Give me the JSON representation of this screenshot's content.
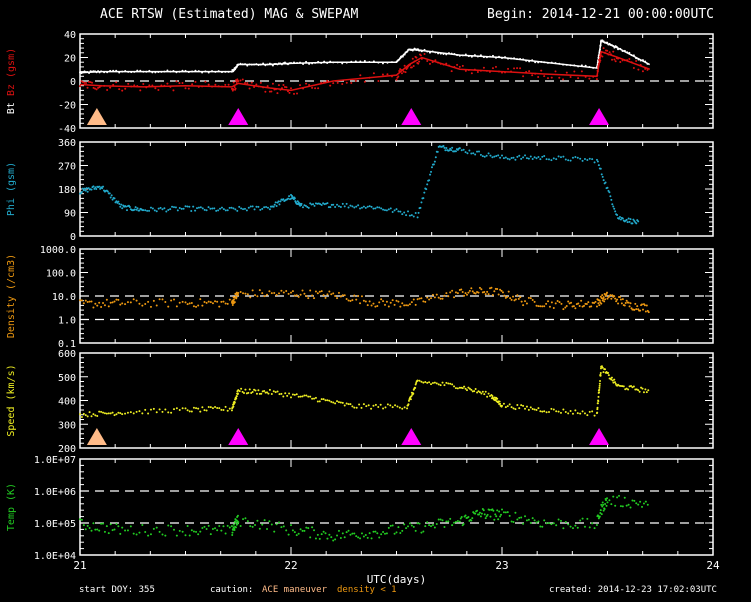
{
  "header": {
    "title": "ACE RTSW (Estimated) MAG & SWEPAM",
    "begin": "Begin: 2014-12-21 00:00:00UTC"
  },
  "footer": {
    "start_doy": "start DOY: 355",
    "caution_label": "caution:",
    "caution_maneuver": "ACE maneuver",
    "caution_density": "density < 1",
    "created": "created: 2014-12-23 17:02:03UTC"
  },
  "colors": {
    "background": "#000000",
    "frame": "#ffffff",
    "bt": "#ffffff",
    "bz": "#dd1111",
    "phi": "#22aacc",
    "density": "#ee9911",
    "speed": "#eeee22",
    "temp": "#22cc22",
    "maneuver_marker": "#ffbb88",
    "event_marker": "#ff00ff"
  },
  "chart_data": [
    {
      "type": "line",
      "panel": "mag",
      "ylabel_parts": [
        "Bt",
        "Bz",
        "(gsm)"
      ],
      "xlim": [
        21,
        24
      ],
      "ylim": [
        -40,
        40
      ],
      "yticks": [
        40,
        20,
        0,
        -20,
        -40
      ],
      "dashed_ref": [
        0
      ],
      "series": [
        {
          "name": "Bt",
          "x": [
            21.0,
            21.1,
            21.3,
            21.5,
            21.72,
            21.75,
            21.9,
            22.0,
            22.2,
            22.5,
            22.56,
            22.62,
            22.8,
            23.0,
            23.2,
            23.45,
            23.47,
            23.55,
            23.7
          ],
          "y": [
            7,
            8,
            8,
            8,
            8,
            14,
            14,
            15,
            16,
            16,
            27,
            26,
            22,
            20,
            16,
            11,
            34,
            28,
            14
          ]
        },
        {
          "name": "Bz",
          "x": [
            21.0,
            21.1,
            21.3,
            21.5,
            21.72,
            21.75,
            21.9,
            22.0,
            22.2,
            22.5,
            22.56,
            22.62,
            22.8,
            23.0,
            23.2,
            23.45,
            23.47,
            23.55,
            23.7
          ],
          "y": [
            -3,
            -4,
            -5,
            -4,
            -5,
            -2,
            -6,
            -8,
            0,
            5,
            14,
            20,
            10,
            8,
            6,
            4,
            25,
            20,
            10
          ]
        }
      ],
      "markers": [
        {
          "x": 21.08,
          "kind": "maneuver"
        },
        {
          "x": 21.75,
          "kind": "event"
        },
        {
          "x": 22.57,
          "kind": "event"
        },
        {
          "x": 23.46,
          "kind": "event"
        }
      ]
    },
    {
      "type": "scatter",
      "panel": "phi",
      "ylabel_parts": [
        "Phi",
        "(gsm)"
      ],
      "xlim": [
        21,
        24
      ],
      "ylim": [
        0,
        360
      ],
      "yticks": [
        360,
        270,
        180,
        90,
        0
      ],
      "series": [
        {
          "name": "Phi",
          "x": [
            21.0,
            21.1,
            21.2,
            21.3,
            21.5,
            21.7,
            21.9,
            22.0,
            22.05,
            22.2,
            22.4,
            22.6,
            22.7,
            22.8,
            23.0,
            23.2,
            23.45,
            23.55,
            23.65
          ],
          "y": [
            170,
            190,
            110,
            100,
            105,
            100,
            110,
            150,
            115,
            120,
            110,
            80,
            340,
            330,
            300,
            300,
            290,
            70,
            50
          ]
        }
      ]
    },
    {
      "type": "scatter",
      "panel": "density",
      "ylabel_parts": [
        "Density",
        "(/cm3)"
      ],
      "log": true,
      "xlim": [
        21,
        24
      ],
      "ylim": [
        0.1,
        1000
      ],
      "yticks": [
        "1000.0",
        "100.0",
        "10.0",
        "1.0",
        "0.1"
      ],
      "dashed_ref": [
        10,
        1
      ],
      "series": [
        {
          "name": "Density",
          "x": [
            21.0,
            21.2,
            21.5,
            21.72,
            21.75,
            22.0,
            22.2,
            22.4,
            22.6,
            22.8,
            22.95,
            23.1,
            23.3,
            23.45,
            23.5,
            23.6,
            23.7
          ],
          "y": [
            4.5,
            5,
            5,
            5,
            12,
            13,
            11,
            5,
            5,
            14,
            16,
            6,
            4,
            5,
            10,
            4,
            3
          ]
        }
      ]
    },
    {
      "type": "scatter",
      "panel": "speed",
      "ylabel_parts": [
        "Speed",
        "(km/s)"
      ],
      "xlim": [
        21,
        24
      ],
      "ylim": [
        200,
        600
      ],
      "yticks": [
        600,
        500,
        400,
        300,
        200
      ],
      "series": [
        {
          "name": "Speed",
          "x": [
            21.0,
            21.2,
            21.5,
            21.72,
            21.75,
            21.9,
            22.1,
            22.3,
            22.55,
            22.6,
            22.8,
            22.95,
            23.0,
            23.2,
            23.45,
            23.47,
            23.55,
            23.7
          ],
          "y": [
            340,
            350,
            360,
            365,
            440,
            435,
            410,
            375,
            375,
            480,
            460,
            420,
            380,
            360,
            345,
            540,
            460,
            440
          ]
        }
      ],
      "markers": [
        {
          "x": 21.08,
          "kind": "maneuver"
        },
        {
          "x": 21.75,
          "kind": "event"
        },
        {
          "x": 22.57,
          "kind": "event"
        },
        {
          "x": 23.46,
          "kind": "event"
        }
      ]
    },
    {
      "type": "scatter",
      "panel": "temp",
      "ylabel_parts": [
        "Temp",
        "(K)"
      ],
      "log": true,
      "xlim": [
        21,
        24
      ],
      "ylim": [
        10000,
        10000000
      ],
      "yticks": [
        "1.0E+07",
        "1.0E+06",
        "1.0E+05",
        "1.0E+04"
      ],
      "dashed_ref": [
        1000000,
        100000
      ],
      "xticks": [
        21,
        22,
        23,
        24
      ],
      "xlabel": "UTC(days)",
      "series": [
        {
          "name": "Temp",
          "x": [
            21.0,
            21.2,
            21.5,
            21.72,
            21.75,
            22.0,
            22.2,
            22.4,
            22.6,
            22.8,
            22.9,
            23.0,
            23.2,
            23.45,
            23.5,
            23.7
          ],
          "y": [
            90000,
            60000,
            60000,
            55000,
            120000,
            60000,
            40000,
            50000,
            70000,
            110000,
            200000,
            180000,
            100000,
            90000,
            500000,
            400000
          ]
        }
      ]
    }
  ]
}
